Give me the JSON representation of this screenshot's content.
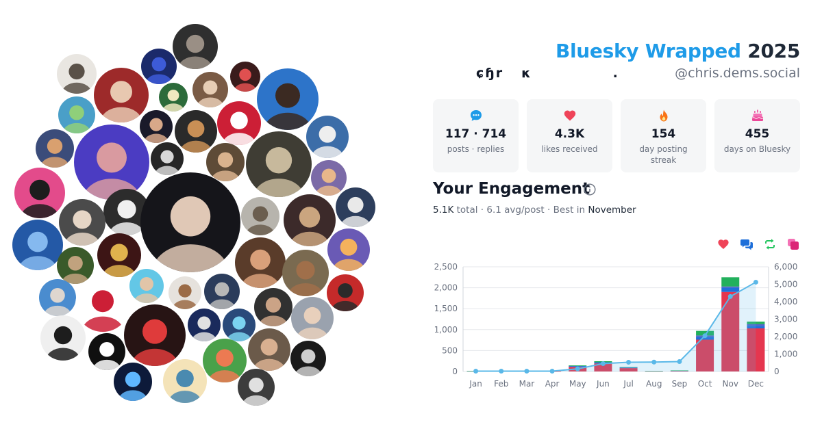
{
  "header": {
    "title_brand": "Bluesky Wrapped",
    "title_year": "2025",
    "display_name_part1": "ɕɧr",
    "display_name_part2": "κ",
    "display_name_part3": ".",
    "handle": "@chris.dems.social"
  },
  "stats": [
    {
      "icon": "chat-bubble-icon",
      "color": "#1e9be8",
      "value": "117 · 714",
      "label": "posts · replies"
    },
    {
      "icon": "heart-icon",
      "color": "#ef4459",
      "value": "4.3K",
      "label": "likes received"
    },
    {
      "icon": "flame-icon",
      "color": "#f97316",
      "value": "154",
      "label": "day posting streak"
    },
    {
      "icon": "cake-icon",
      "color": "#ec4899",
      "value": "455",
      "label": "days on Bluesky"
    }
  ],
  "engagement": {
    "title": "Your Engagement",
    "total_value": "5.1K",
    "total_word": "total",
    "avg": "6.1 avg/post",
    "best_prefix": "Best in",
    "best_month": "November"
  },
  "legend": [
    {
      "icon": "heart-icon",
      "color": "#ef4459"
    },
    {
      "icon": "reply-bubbles-icon",
      "color": "#1e6fd9"
    },
    {
      "icon": "repost-icon",
      "color": "#22c55e"
    },
    {
      "icon": "quote-icon",
      "color": "#ec4899"
    }
  ],
  "chart_data": {
    "type": "bar",
    "categories": [
      "Jan",
      "Feb",
      "Mar",
      "Apr",
      "May",
      "Jun",
      "Jul",
      "Aug",
      "Sep",
      "Oct",
      "Nov",
      "Dec"
    ],
    "series": [
      {
        "color": "#e5364f",
        "values": [
          8,
          2,
          2,
          2,
          110,
          190,
          80,
          5,
          15,
          760,
          1900,
          1030
        ]
      },
      {
        "color": "#1e6fd9",
        "values": [
          2,
          0,
          0,
          0,
          20,
          30,
          15,
          3,
          5,
          60,
          100,
          60
        ]
      },
      {
        "color": "#4f64c9",
        "values": [
          0,
          0,
          0,
          0,
          0,
          0,
          0,
          0,
          0,
          40,
          30,
          40
        ]
      },
      {
        "color": "#22b05c",
        "values": [
          2,
          0,
          0,
          0,
          15,
          25,
          10,
          2,
          5,
          110,
          220,
          60
        ]
      }
    ],
    "cumulative": {
      "color": "#5ab8e8",
      "values": [
        20,
        20,
        20,
        20,
        150,
        450,
        530,
        540,
        570,
        2050,
        4300,
        5120
      ]
    },
    "y_left": {
      "range": [
        0,
        2500
      ],
      "ticks": [
        "0",
        "500",
        "1,000",
        "1,500",
        "2,000",
        "2,500"
      ]
    },
    "y_right": {
      "range": [
        0,
        6000
      ],
      "ticks": [
        "0",
        "1,000",
        "2,000",
        "3,000",
        "4,000",
        "5,000",
        "6,000"
      ]
    },
    "grid": true
  },
  "avatars": [
    {
      "color": "#2f2f2f",
      "accent": "#9a8f85"
    },
    {
      "color": "#1b2a6b",
      "accent": "#3d5bd9"
    },
    {
      "color": "#e9e6e1",
      "accent": "#5a5148"
    },
    {
      "color": "#9d2a2a",
      "accent": "#e8c8b0"
    },
    {
      "color": "#7a5b45",
      "accent": "#e7cdb5"
    },
    {
      "color": "#2c6b3a",
      "accent": "#f0e8c0"
    },
    {
      "color": "#3a1b1b",
      "accent": "#e05050"
    },
    {
      "color": "#2d74c9",
      "accent": "#3b2a22"
    },
    {
      "color": "#4a9fc8",
      "accent": "#8fcf7a"
    },
    {
      "color": "#1a1a2a",
      "accent": "#d8a889"
    },
    {
      "color": "#2a2a2a",
      "accent": "#c98f55"
    },
    {
      "color": "#cc1f36",
      "accent": "#ffffff"
    },
    {
      "color": "#3b4c7a",
      "accent": "#d9a06f"
    },
    {
      "color": "#3c6da8",
      "accent": "#eeeeee"
    },
    {
      "color": "#4b3cc2",
      "accent": "#d99aa0"
    },
    {
      "color": "#262626",
      "accent": "#d8d8d8"
    },
    {
      "color": "#5e4b37",
      "accent": "#d9b28d"
    },
    {
      "color": "#3f3d34",
      "accent": "#c7b99c"
    },
    {
      "color": "#7b6aa7",
      "accent": "#e8b78a"
    },
    {
      "color": "#e34b8b",
      "accent": "#1d1d1d"
    },
    {
      "color": "#2c2c2c",
      "accent": "#f0f0f0"
    },
    {
      "color": "#4b4b4b",
      "accent": "#e6d6c6"
    },
    {
      "color": "#15151a",
      "accent": "#e0c8b6"
    },
    {
      "color": "#b7b4ad",
      "accent": "#6b5e4f"
    },
    {
      "color": "#3c2a2a",
      "accent": "#caa57f"
    },
    {
      "color": "#2d3e5c",
      "accent": "#e9e9e9"
    },
    {
      "color": "#2459a6",
      "accent": "#85b9ef"
    },
    {
      "color": "#3d1515",
      "accent": "#e0b24d"
    },
    {
      "color": "#3a5a2a",
      "accent": "#c1a27e"
    },
    {
      "color": "#5a3c2a",
      "accent": "#d9a07a"
    },
    {
      "color": "#7a6a50",
      "accent": "#a06f4a"
    },
    {
      "color": "#6a5ab5",
      "accent": "#f5b25d"
    },
    {
      "color": "#4a8ccf",
      "accent": "#ded6cf"
    },
    {
      "color": "#63c7e6",
      "accent": "#e1c5a8"
    },
    {
      "color": "#ffffff",
      "accent": "#cc1f36"
    },
    {
      "color": "#e6e2dd",
      "accent": "#9b6b46"
    },
    {
      "color": "#2b3c5b",
      "accent": "#b7b7b7"
    },
    {
      "color": "#313131",
      "accent": "#cba386"
    },
    {
      "color": "#c52a2a",
      "accent": "#2a2a2a"
    },
    {
      "color": "#9aa2ae",
      "accent": "#e8d0bc"
    },
    {
      "color": "#efefef",
      "accent": "#1d1d1d"
    },
    {
      "color": "#271414",
      "accent": "#df3b3b"
    },
    {
      "color": "#1a2a5c",
      "accent": "#e1e1e1"
    },
    {
      "color": "#2a4a7a",
      "accent": "#7bd3f0"
    },
    {
      "color": "#101010",
      "accent": "#ffffff"
    },
    {
      "color": "#4aa14a",
      "accent": "#ec7a52"
    },
    {
      "color": "#6b5a4a",
      "accent": "#d9b090"
    },
    {
      "color": "#1a1a1a",
      "accent": "#cfcfcf"
    },
    {
      "color": "#0d1a3a",
      "accent": "#5fb7ff"
    },
    {
      "color": "#f4e3b8",
      "accent": "#4a8ab0"
    },
    {
      "color": "#3c3c3c",
      "accent": "#e0e0e0"
    }
  ]
}
